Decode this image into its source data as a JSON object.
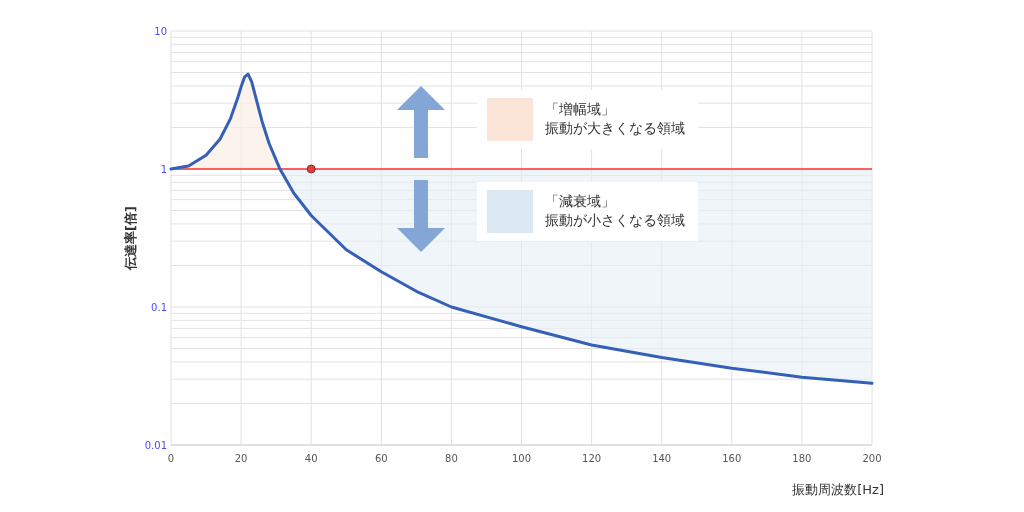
{
  "chart_data": {
    "type": "line",
    "xlabel": "振動周波数[Hz]",
    "ylabel": "伝達率[倍]",
    "log": "y",
    "grid": true,
    "xlim": [
      0,
      200
    ],
    "xticks": [
      0,
      20,
      40,
      60,
      80,
      100,
      120,
      140,
      160,
      180,
      200
    ],
    "ylim": [
      0.01,
      10
    ],
    "yticks": [
      0.01,
      {
        "value": 0.02,
        "label": null
      },
      {
        "value": 0.03,
        "label": null
      },
      {
        "value": 0.04,
        "label": null
      },
      {
        "value": 0.05,
        "label": null
      },
      {
        "value": 0.06,
        "label": null
      },
      {
        "value": 0.07,
        "label": null
      },
      {
        "value": 0.08,
        "label": null
      },
      {
        "value": 0.09,
        "label": null
      },
      0.1,
      {
        "value": 0.2,
        "label": null
      },
      {
        "value": 0.3,
        "label": null
      },
      {
        "value": 0.4,
        "label": null
      },
      {
        "value": 0.5,
        "label": null
      },
      {
        "value": 0.6,
        "label": null
      },
      {
        "value": 0.7,
        "label": null
      },
      {
        "value": 0.8,
        "label": null
      },
      {
        "value": 0.9,
        "label": null
      },
      1,
      {
        "value": 2,
        "label": null
      },
      {
        "value": 3,
        "label": null
      },
      {
        "value": 4,
        "label": null
      },
      {
        "value": 5,
        "label": null
      },
      {
        "value": 6,
        "label": null
      },
      {
        "value": 7,
        "label": null
      },
      {
        "value": 8,
        "label": null
      },
      {
        "value": 9,
        "label": null
      },
      10
    ],
    "x": [
      0,
      5,
      10,
      14,
      17,
      19,
      20,
      21,
      22,
      23,
      24,
      26,
      28,
      31,
      35,
      40,
      50,
      60,
      70,
      80,
      100,
      120,
      140,
      160,
      180,
      200
    ],
    "series": [
      {
        "color": "#3560b8",
        "values": [
          1,
          1.05,
          1.26,
          1.65,
          2.33,
          3.25,
          3.94,
          4.65,
          4.87,
          4.3,
          3.45,
          2.2,
          1.53,
          1.01,
          0.67,
          0.46,
          0.26,
          0.18,
          0.13,
          0.1,
          0.072,
          0.053,
          0.043,
          0.036,
          0.031,
          0.028
        ]
      },
      {
        "type": "scatter",
        "color": "#e04040",
        "marker": "circle",
        "x": [
          40
        ],
        "values": [
          1
        ]
      }
    ],
    "ref_lines": [
      {
        "axis": "y",
        "value": 1,
        "color": "#ff3030"
      }
    ],
    "annotations": [
      "「増幅域」",
      "振動が大きくなる領域",
      "「減衰域」",
      "振動が小さくなる領域"
    ]
  }
}
